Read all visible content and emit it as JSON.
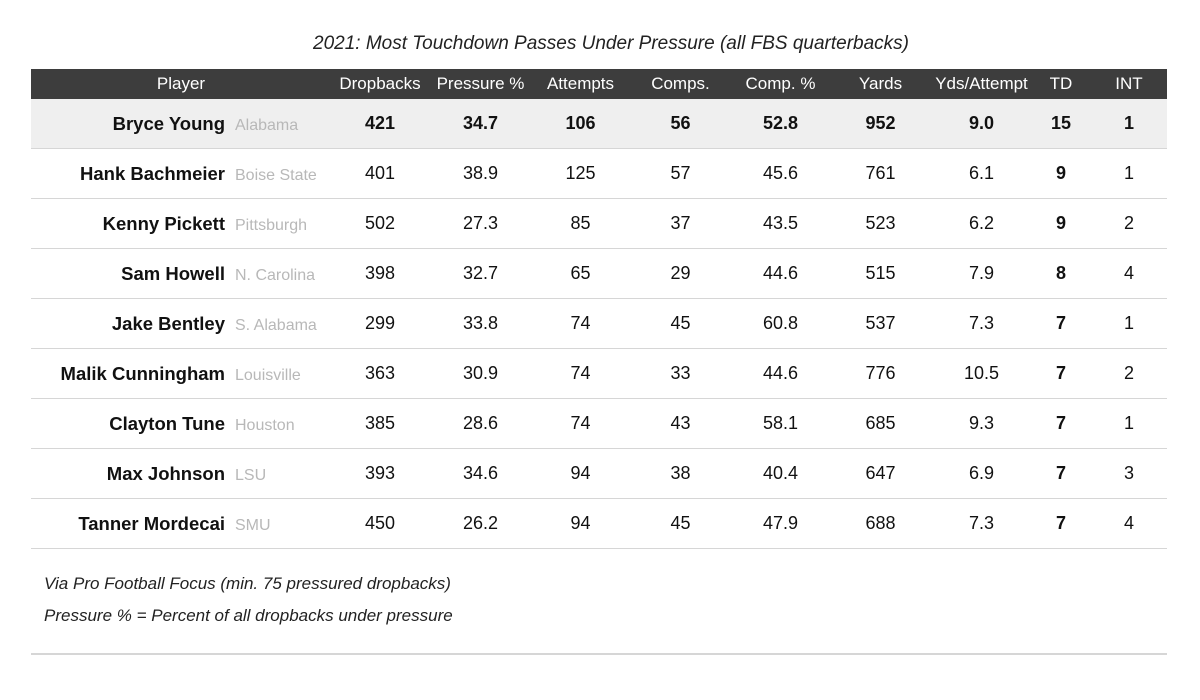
{
  "chart_data": {
    "type": "table",
    "title": "2021: Most Touchdown Passes Under Pressure (all FBS quarterbacks)",
    "columns": [
      "Player",
      "Dropbacks",
      "Pressure %",
      "Attempts",
      "Comps.",
      "Comp. %",
      "Yards",
      "Yds/Attempt",
      "TD",
      "INT"
    ],
    "rows": [
      {
        "player": "Bryce Young",
        "school": "Alabama",
        "dropbacks": "421",
        "pressure_pct": "34.7",
        "attempts": "106",
        "comps": "56",
        "comp_pct": "52.8",
        "yards": "952",
        "yds_att": "9.0",
        "td": "15",
        "int": "1"
      },
      {
        "player": "Hank Bachmeier",
        "school": "Boise State",
        "dropbacks": "401",
        "pressure_pct": "38.9",
        "attempts": "125",
        "comps": "57",
        "comp_pct": "45.6",
        "yards": "761",
        "yds_att": "6.1",
        "td": "9",
        "int": "1"
      },
      {
        "player": "Kenny Pickett",
        "school": "Pittsburgh",
        "dropbacks": "502",
        "pressure_pct": "27.3",
        "attempts": "85",
        "comps": "37",
        "comp_pct": "43.5",
        "yards": "523",
        "yds_att": "6.2",
        "td": "9",
        "int": "2"
      },
      {
        "player": "Sam Howell",
        "school": "N. Carolina",
        "dropbacks": "398",
        "pressure_pct": "32.7",
        "attempts": "65",
        "comps": "29",
        "comp_pct": "44.6",
        "yards": "515",
        "yds_att": "7.9",
        "td": "8",
        "int": "4"
      },
      {
        "player": "Jake Bentley",
        "school": "S. Alabama",
        "dropbacks": "299",
        "pressure_pct": "33.8",
        "attempts": "74",
        "comps": "45",
        "comp_pct": "60.8",
        "yards": "537",
        "yds_att": "7.3",
        "td": "7",
        "int": "1"
      },
      {
        "player": "Malik Cunningham",
        "school": "Louisville",
        "dropbacks": "363",
        "pressure_pct": "30.9",
        "attempts": "74",
        "comps": "33",
        "comp_pct": "44.6",
        "yards": "776",
        "yds_att": "10.5",
        "td": "7",
        "int": "2"
      },
      {
        "player": "Clayton Tune",
        "school": "Houston",
        "dropbacks": "385",
        "pressure_pct": "28.6",
        "attempts": "74",
        "comps": "43",
        "comp_pct": "58.1",
        "yards": "685",
        "yds_att": "9.3",
        "td": "7",
        "int": "1"
      },
      {
        "player": "Max Johnson",
        "school": "LSU",
        "dropbacks": "393",
        "pressure_pct": "34.6",
        "attempts": "94",
        "comps": "38",
        "comp_pct": "40.4",
        "yards": "647",
        "yds_att": "6.9",
        "td": "7",
        "int": "3"
      },
      {
        "player": "Tanner Mordecai",
        "school": "SMU",
        "dropbacks": "450",
        "pressure_pct": "26.2",
        "attempts": "94",
        "comps": "45",
        "comp_pct": "47.9",
        "yards": "688",
        "yds_att": "7.3",
        "td": "7",
        "int": "4"
      }
    ],
    "highlighted_row": 0,
    "footnotes": [
      "Via Pro Football Focus (min. 75 pressured dropbacks)",
      "Pressure % = Percent of all dropbacks under pressure"
    ]
  },
  "colors": {
    "header_bg": "#3d3d3d",
    "highlight_bg": "#efefef",
    "school_text": "#b8b8b8",
    "rule": "#d6d6d6"
  }
}
